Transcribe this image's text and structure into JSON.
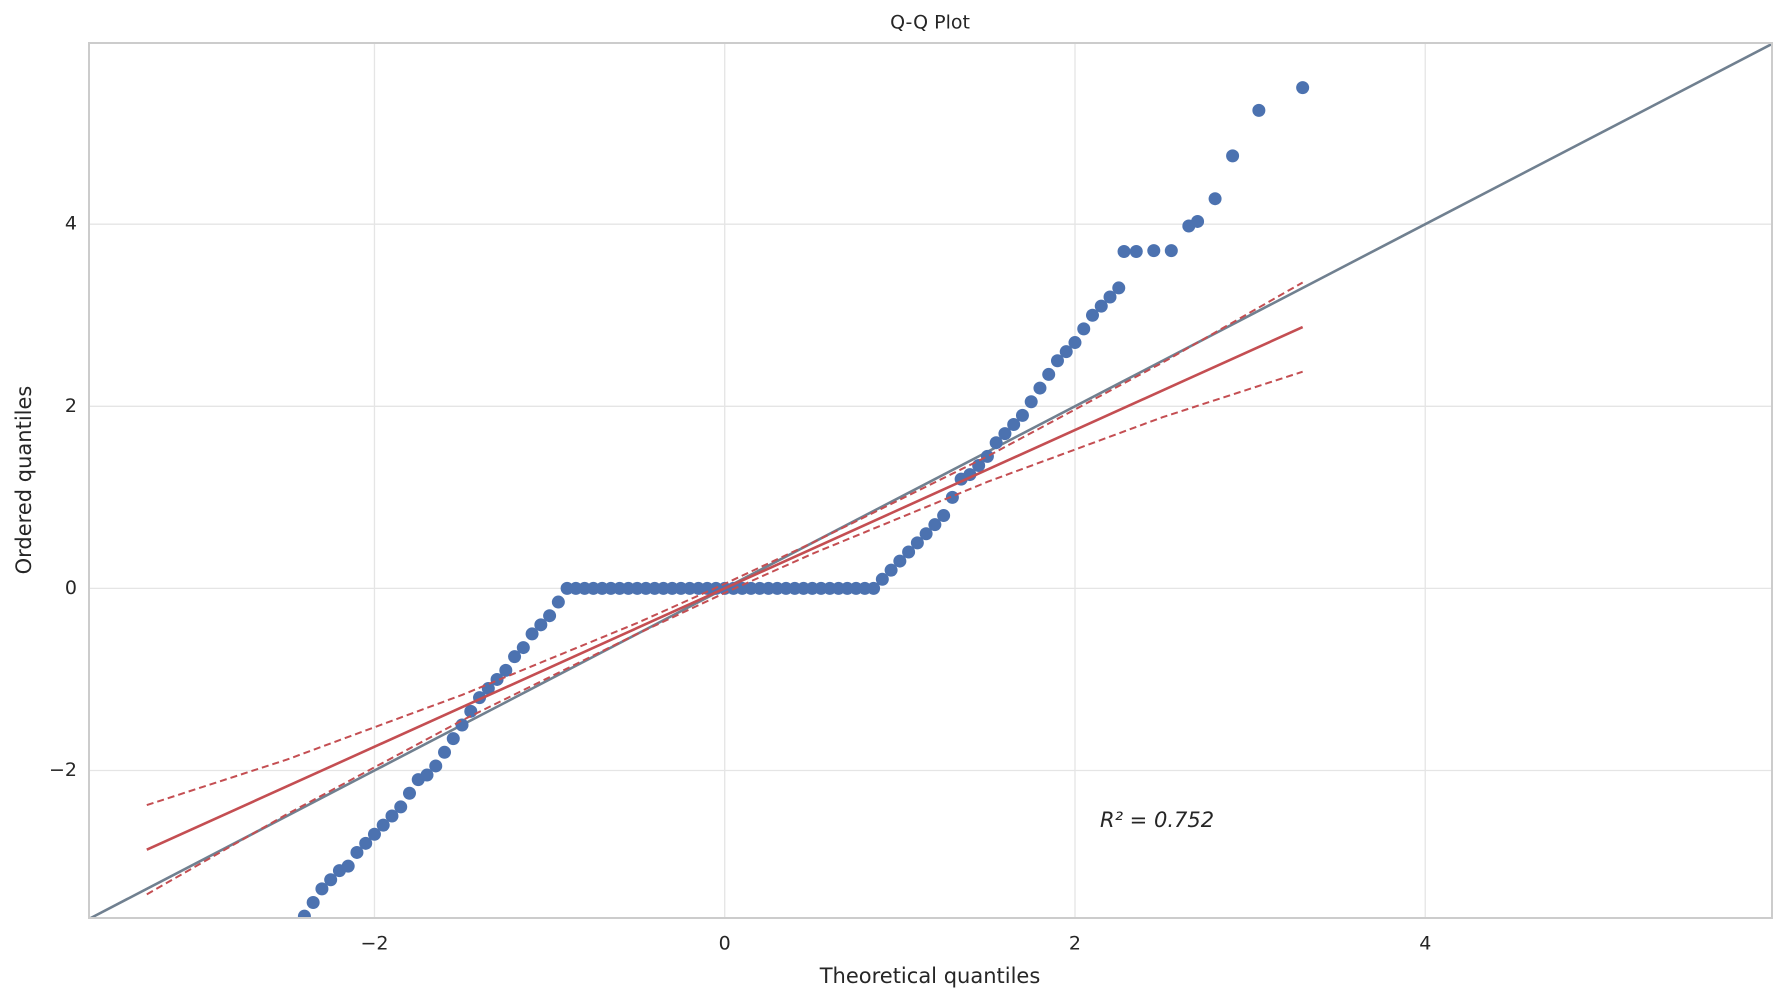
{
  "chart_data": {
    "type": "scatter",
    "title": "Q-Q Plot",
    "xlabel": "Theoretical quantiles",
    "ylabel": "Ordered quantiles",
    "annotation": "R² = 0.752",
    "xlim": [
      -3.63,
      5.98
    ],
    "ylim": [
      -3.62,
      5.99
    ],
    "xticks": [
      {
        "value": -2,
        "label": "−2"
      },
      0,
      2,
      4
    ],
    "yticks": [
      {
        "value": -2,
        "label": "−2"
      },
      0,
      2,
      4
    ],
    "grid": true,
    "series": [
      {
        "kind": "line",
        "color": "#708090",
        "x": [
          -3.63,
          5.98
        ],
        "values": [
          -3.63,
          5.98
        ]
      },
      {
        "kind": "scatter",
        "color": "#4c72b0",
        "x": [
          -2.4,
          -2.35,
          -2.3,
          -2.25,
          -2.2,
          -2.15,
          -2.1,
          -2.05,
          -2.0,
          -1.95,
          -1.9,
          -1.85,
          -1.8,
          -1.75,
          -1.7,
          -1.65,
          -1.6,
          -1.55,
          -1.5,
          -1.45,
          -1.4,
          -1.35,
          -1.3,
          -1.25,
          -1.2,
          -1.15,
          -1.1,
          -1.05,
          -1.0,
          -0.95,
          -0.9,
          -0.85,
          -0.8,
          -0.75,
          -0.7,
          -0.65,
          -0.6,
          -0.55,
          -0.5,
          -0.45,
          -0.4,
          -0.35,
          -0.3,
          -0.25,
          -0.2,
          -0.15,
          -0.1,
          -0.05,
          0,
          0.05,
          0.1,
          0.15,
          0.2,
          0.25,
          0.3,
          0.35,
          0.4,
          0.45,
          0.5,
          0.55,
          0.6,
          0.65,
          0.7,
          0.75,
          0.8,
          0.85,
          0.9,
          0.95,
          1.0,
          1.05,
          1.1,
          1.15,
          1.2,
          1.25,
          1.3,
          1.35,
          1.4,
          1.45,
          1.5,
          1.55,
          1.6,
          1.65,
          1.7,
          1.75,
          1.8,
          1.85,
          1.9,
          1.95,
          2.0,
          2.05,
          2.1,
          2.15,
          2.2,
          2.25,
          2.28,
          2.35,
          2.45,
          2.55,
          2.65,
          2.7,
          2.8,
          2.9,
          3.05,
          3.3
        ],
        "values": [
          -3.6,
          -3.45,
          -3.3,
          -3.2,
          -3.1,
          -3.05,
          -2.9,
          -2.8,
          -2.7,
          -2.6,
          -2.5,
          -2.4,
          -2.25,
          -2.1,
          -2.05,
          -1.95,
          -1.8,
          -1.65,
          -1.5,
          -1.35,
          -1.2,
          -1.1,
          -1.0,
          -0.9,
          -0.75,
          -0.65,
          -0.5,
          -0.4,
          -0.3,
          -0.15,
          0,
          0,
          0,
          0,
          0,
          0,
          0,
          0,
          0,
          0,
          0,
          0,
          0,
          0,
          0,
          0,
          0,
          0,
          0,
          0,
          0,
          0,
          0,
          0,
          0,
          0,
          0,
          0,
          0,
          0,
          0,
          0,
          0,
          0,
          0,
          0,
          0.1,
          0.2,
          0.3,
          0.4,
          0.5,
          0.6,
          0.7,
          0.8,
          1.0,
          1.2,
          1.25,
          1.35,
          1.45,
          1.6,
          1.7,
          1.8,
          1.9,
          2.05,
          2.2,
          2.35,
          2.5,
          2.6,
          2.7,
          2.85,
          3.0,
          3.1,
          3.2,
          3.3,
          3.7,
          3.7,
          3.71,
          3.71,
          3.98,
          4.03,
          4.28,
          4.75,
          5.25,
          5.5
        ]
      },
      {
        "kind": "line",
        "color": "#c44e52",
        "x": [
          -3.3,
          3.3
        ],
        "values": [
          -2.87,
          2.87
        ]
      },
      {
        "kind": "line",
        "color": "#c44e52",
        "style": "dashed",
        "x": [
          -3.3,
          -2.5,
          -1.5,
          -0.5,
          0,
          0.5,
          1.5,
          2.5,
          3.3
        ],
        "values": [
          -2.38,
          -1.88,
          -1.17,
          -0.38,
          0.05,
          0.5,
          1.45,
          2.48,
          3.36
        ]
      },
      {
        "kind": "line",
        "color": "#c44e52",
        "style": "dashed",
        "x": [
          -3.3,
          -2.5,
          -1.5,
          -0.5,
          0,
          0.5,
          1.5,
          2.5,
          3.3
        ],
        "values": [
          -3.36,
          -2.48,
          -1.45,
          -0.5,
          -0.05,
          0.38,
          1.17,
          1.88,
          2.38
        ]
      }
    ]
  }
}
